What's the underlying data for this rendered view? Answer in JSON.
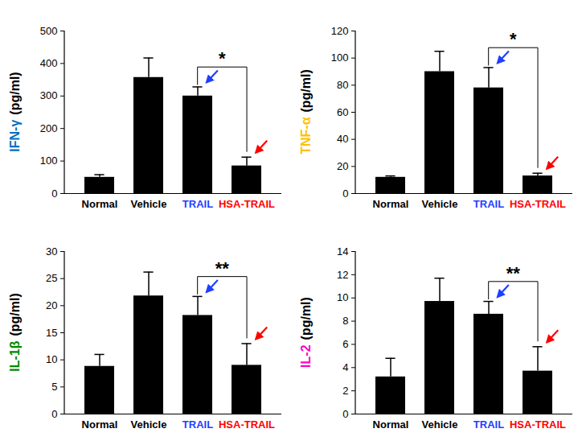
{
  "chart_data": [
    {
      "type": "bar",
      "ylabel": "IFN-γ",
      "ylabel_unit": "(pg/ml)",
      "ylabel_color": "#0070c0",
      "categories": [
        "Normal",
        "Vehicle",
        "TRAIL",
        "HSA-TRAIL"
      ],
      "category_label_colors": [
        "#000000",
        "#000000",
        "#1f3fff",
        "#ff0000"
      ],
      "values": [
        50,
        357,
        300,
        85
      ],
      "errors": [
        8,
        60,
        28,
        27
      ],
      "color": "#000000",
      "ylim": [
        0,
        500
      ],
      "yticks": [
        0,
        100,
        200,
        300,
        400,
        500
      ],
      "annotations": [
        {
          "from": "TRAIL",
          "to": "HSA-TRAIL",
          "text": "*"
        }
      ]
    },
    {
      "type": "bar",
      "ylabel": "TNF-α",
      "ylabel_unit": "(pg/ml)",
      "ylabel_color": "#ffc000",
      "categories": [
        "Normal",
        "Vehicle",
        "TRAIL",
        "HSA-TRAIL"
      ],
      "category_label_colors": [
        "#000000",
        "#000000",
        "#1f3fff",
        "#ff0000"
      ],
      "values": [
        12,
        90,
        78,
        13
      ],
      "errors": [
        1,
        15,
        15,
        2
      ],
      "color": "#000000",
      "ylim": [
        0,
        120
      ],
      "yticks": [
        0,
        20,
        40,
        60,
        80,
        100,
        120
      ],
      "annotations": [
        {
          "from": "TRAIL",
          "to": "HSA-TRAIL",
          "text": "*"
        }
      ]
    },
    {
      "type": "bar",
      "ylabel": "IL-1β",
      "ylabel_unit": "(pg/ml)",
      "ylabel_color": "#008a00",
      "categories": [
        "Normal",
        "Vehicle",
        "TRAIL",
        "HSA-TRAIL"
      ],
      "category_label_colors": [
        "#000000",
        "#000000",
        "#1f3fff",
        "#ff0000"
      ],
      "values": [
        8.8,
        21.8,
        18.2,
        9
      ],
      "errors": [
        2.2,
        4.4,
        3.5,
        4
      ],
      "color": "#000000",
      "ylim": [
        0,
        30
      ],
      "yticks": [
        0,
        5,
        10,
        15,
        20,
        25,
        30
      ],
      "annotations": [
        {
          "from": "TRAIL",
          "to": "HSA-TRAIL",
          "text": "**"
        }
      ]
    },
    {
      "type": "bar",
      "ylabel": "IL-2",
      "ylabel_unit": "(pg/ml)",
      "ylabel_color": "#ff00cc",
      "categories": [
        "Normal",
        "Vehicle",
        "TRAIL",
        "HSA-TRAIL"
      ],
      "category_label_colors": [
        "#000000",
        "#000000",
        "#1f3fff",
        "#ff0000"
      ],
      "values": [
        3.2,
        9.7,
        8.6,
        3.7
      ],
      "errors": [
        1.6,
        2,
        1.1,
        2.1
      ],
      "color": "#000000",
      "ylim": [
        0,
        14
      ],
      "yticks": [
        0,
        2,
        4,
        6,
        8,
        10,
        12,
        14
      ],
      "annotations": [
        {
          "from": "TRAIL",
          "to": "HSA-TRAIL",
          "text": "**"
        }
      ]
    }
  ]
}
